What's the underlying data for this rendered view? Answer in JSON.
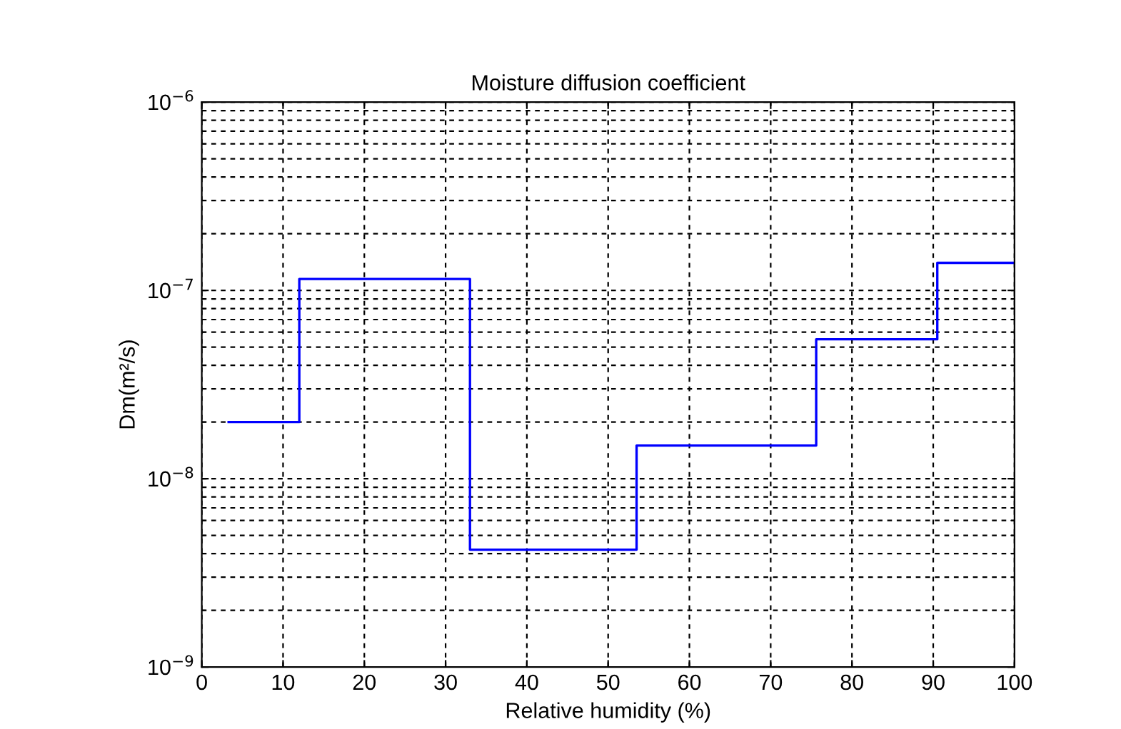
{
  "chart_data": {
    "type": "step",
    "title": "Moisture diffusion coefficient",
    "xlabel": "Relative humidity (%)",
    "ylabel": "Dm(m²/s)",
    "x": [
      3.3,
      12,
      33,
      53.5,
      75.6,
      90.5,
      100
    ],
    "series": [
      {
        "color": "#0000ff",
        "values": [
          2e-08,
          1.15e-07,
          4.2e-09,
          1.5e-08,
          5.5e-08,
          1.4e-07,
          1.4e-07
        ]
      }
    ],
    "log": "y",
    "xlim": [
      0,
      100
    ],
    "xticks": [
      0,
      10,
      20,
      30,
      40,
      50,
      60,
      70,
      80,
      90,
      100
    ],
    "ylim": [
      1e-09,
      1e-06
    ],
    "yticks": [
      {
        "value": 1e-09,
        "label": "10$^{−9}$"
      },
      {
        "value": 1e-08,
        "label": "10$^{−8}$"
      },
      {
        "value": 1e-07,
        "label": "10$^{−7}$"
      },
      {
        "value": 1e-06,
        "label": "10$^{−6}$"
      }
    ],
    "grid": true,
    "line_style": "solid",
    "marker": "none"
  }
}
